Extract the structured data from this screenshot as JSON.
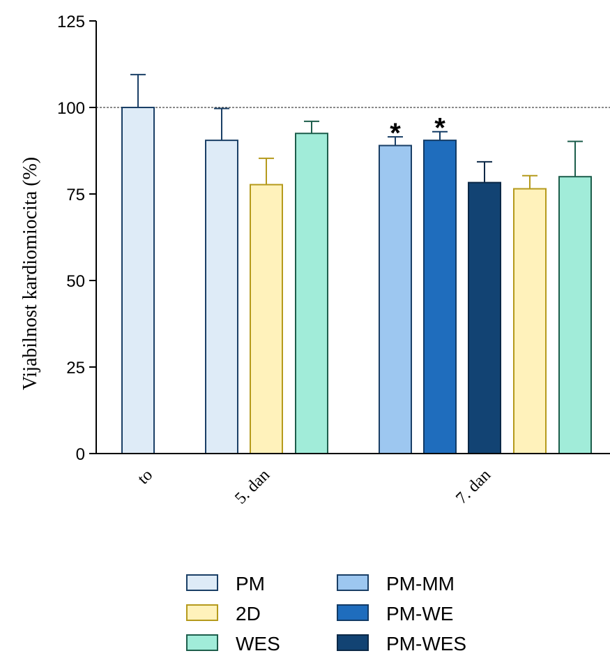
{
  "chart_data": {
    "type": "bar",
    "ylabel": "Vijabilnost kardiomiocita (%)",
    "xlabel": "",
    "ylim": [
      0,
      125
    ],
    "yticks": [
      0,
      25,
      50,
      75,
      100,
      125
    ],
    "reference_line": 100,
    "groups": [
      {
        "label": "to",
        "bars": [
          {
            "series": "PM",
            "value": 100,
            "error": 9.5,
            "sig": ""
          }
        ]
      },
      {
        "label": "5. dan",
        "bars": [
          {
            "series": "PM",
            "value": 90.5,
            "error": 9.2,
            "sig": ""
          },
          {
            "series": "2D",
            "value": 77.7,
            "error": 7.6,
            "sig": ""
          },
          {
            "series": "WES",
            "value": 92.5,
            "error": 3.5,
            "sig": ""
          }
        ]
      },
      {
        "label": "7. dan",
        "bars": [
          {
            "series": "PM-MM",
            "value": 89,
            "error": 2.5,
            "sig": "*"
          },
          {
            "series": "PM-WE",
            "value": 90.5,
            "error": 2.5,
            "sig": "*"
          },
          {
            "series": "PM-WES",
            "value": 78.3,
            "error": 6,
            "sig": ""
          },
          {
            "series": "2D",
            "value": 76.5,
            "error": 3.8,
            "sig": ""
          },
          {
            "series": "WES",
            "value": 80,
            "error": 10.2,
            "sig": ""
          }
        ]
      }
    ],
    "series": [
      {
        "name": "PM",
        "fill": "#deebf7",
        "stroke": "#1a3f66"
      },
      {
        "name": "2D",
        "fill": "#fff2bb",
        "stroke": "#b59a1c"
      },
      {
        "name": "WES",
        "fill": "#a1ecd9",
        "stroke": "#1d5e4c"
      },
      {
        "name": "PM-MM",
        "fill": "#9dc7f0",
        "stroke": "#1a3f66"
      },
      {
        "name": "PM-WE",
        "fill": "#1f6dbd",
        "stroke": "#123b66"
      },
      {
        "name": "PM-WES",
        "fill": "#124373",
        "stroke": "#0b2846"
      }
    ],
    "legend_position": "bottom",
    "grid": false
  }
}
